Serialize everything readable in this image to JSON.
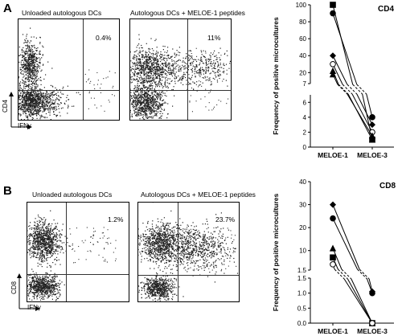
{
  "panel_A": {
    "letter": "A",
    "flow_left_title": "Unloaded autologous DCs",
    "flow_left_pct": "0.4%",
    "flow_right_title": "Autologous DCs + MELOE-1 peptides",
    "flow_right_pct": "11%",
    "y_marker": "CD4",
    "x_marker": "IFNγ"
  },
  "panel_B": {
    "letter": "B",
    "flow_left_title": "Unloaded autologous DCs",
    "flow_left_pct": "1.2%",
    "flow_right_title": "Autologous DCs + MELOE-1 peptides",
    "flow_right_pct": "23.7%",
    "y_marker": "CD8",
    "x_marker": "IFNγ"
  },
  "chart_data": [
    {
      "type": "line",
      "title": "CD4",
      "ylabel": "Frequency of positive microcultures",
      "categories": [
        "MELOE-1",
        "MELOE-3"
      ],
      "y_ticks_top": [
        "7",
        "20",
        "40",
        "60",
        "80",
        "100"
      ],
      "y_ticks_bottom": [
        "0",
        "2",
        "4",
        "6"
      ],
      "series": [
        {
          "marker": "square-filled",
          "values": [
            100,
            1
          ]
        },
        {
          "marker": "circle-filled",
          "values": [
            90,
            4
          ]
        },
        {
          "marker": "diamond-filled",
          "values": [
            40,
            3
          ]
        },
        {
          "marker": "circle-open",
          "values": [
            30,
            2
          ]
        },
        {
          "marker": "triangle-filled",
          "values": [
            22,
            1
          ]
        },
        {
          "marker": "triangle-filled",
          "values": [
            18,
            1.5
          ]
        }
      ]
    },
    {
      "type": "line",
      "title": "CD8",
      "ylabel": "Frequency of positive microcultures",
      "categories": [
        "MELOE-1",
        "MELOE-3"
      ],
      "y_ticks_top": [
        "1.5",
        "10",
        "20",
        "30",
        "40"
      ],
      "y_ticks_bottom": [
        "0.0",
        "0.5",
        "1.0",
        "1.5"
      ],
      "series": [
        {
          "marker": "diamond-filled",
          "values": [
            30,
            1.05
          ]
        },
        {
          "marker": "circle-filled",
          "values": [
            24,
            1.0
          ]
        },
        {
          "marker": "triangle-filled",
          "values": [
            11,
            0
          ]
        },
        {
          "marker": "square-filled",
          "values": [
            7,
            0
          ]
        },
        {
          "marker": "circle-open",
          "values": [
            4,
            0
          ]
        }
      ]
    }
  ]
}
